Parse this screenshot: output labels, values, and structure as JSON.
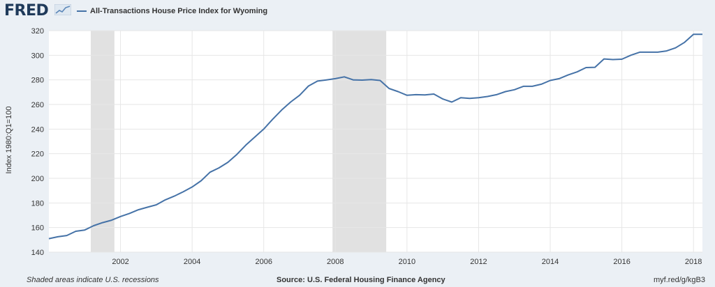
{
  "header": {
    "logo_text": "FRED",
    "logo_icon": "trend-line-icon"
  },
  "chart_data": {
    "type": "line",
    "title": "All-Transactions House Price Index for Wyoming",
    "xlabel": "",
    "ylabel": "Index 1980:Q1=100",
    "ylim": [
      140,
      320
    ],
    "xlim": [
      2000.0,
      2018.25
    ],
    "yticks": [
      140,
      160,
      180,
      200,
      220,
      240,
      260,
      280,
      300,
      320
    ],
    "xticks": [
      2002,
      2004,
      2006,
      2008,
      2010,
      2012,
      2014,
      2016,
      2018
    ],
    "grid": true,
    "legend": "top-left",
    "recessions": [
      [
        2001.17,
        2001.83
      ],
      [
        2007.92,
        2009.42
      ]
    ],
    "series": [
      {
        "name": "All-Transactions House Price Index for Wyoming",
        "color": "#4572a7",
        "x": [
          2000.0,
          2000.25,
          2000.5,
          2000.75,
          2001.0,
          2001.25,
          2001.5,
          2001.75,
          2002.0,
          2002.25,
          2002.5,
          2002.75,
          2003.0,
          2003.25,
          2003.5,
          2003.75,
          2004.0,
          2004.25,
          2004.5,
          2004.75,
          2005.0,
          2005.25,
          2005.5,
          2005.75,
          2006.0,
          2006.25,
          2006.5,
          2006.75,
          2007.0,
          2007.25,
          2007.5,
          2007.75,
          2008.0,
          2008.25,
          2008.5,
          2008.75,
          2009.0,
          2009.25,
          2009.5,
          2009.75,
          2010.0,
          2010.25,
          2010.5,
          2010.75,
          2011.0,
          2011.25,
          2011.5,
          2011.75,
          2012.0,
          2012.25,
          2012.5,
          2012.75,
          2013.0,
          2013.25,
          2013.5,
          2013.75,
          2014.0,
          2014.25,
          2014.5,
          2014.75,
          2015.0,
          2015.25,
          2015.5,
          2015.75,
          2016.0,
          2016.25,
          2016.5,
          2016.75,
          2017.0,
          2017.25,
          2017.5,
          2017.75,
          2018.0,
          2018.25
        ],
        "values": [
          151.0,
          152.5,
          153.5,
          157.0,
          158.0,
          161.5,
          164.0,
          166.0,
          169.0,
          171.5,
          174.5,
          176.5,
          178.5,
          182.5,
          185.5,
          189.0,
          193.0,
          198.0,
          205.0,
          208.5,
          213.0,
          219.5,
          227.0,
          233.5,
          240.0,
          248.0,
          255.5,
          262.0,
          267.5,
          275.0,
          279.0,
          280.0,
          281.0,
          282.5,
          280.0,
          279.8,
          280.2,
          279.5,
          273.0,
          270.5,
          267.5,
          268.0,
          267.8,
          268.5,
          264.5,
          262.0,
          265.5,
          265.0,
          265.5,
          266.5,
          268.0,
          270.5,
          272.0,
          274.8,
          274.8,
          276.5,
          279.5,
          281.0,
          284.0,
          286.5,
          290.0,
          290.2,
          297.0,
          296.5,
          296.8,
          300.0,
          302.5,
          302.5,
          302.5,
          303.5,
          306.0,
          310.5,
          317.0,
          317.0
        ]
      }
    ]
  },
  "footer": {
    "note": "Shaded areas indicate U.S. recessions",
    "source": "Source: U.S. Federal Housing Finance Agency",
    "link": "myf.red/g/kgB3"
  }
}
